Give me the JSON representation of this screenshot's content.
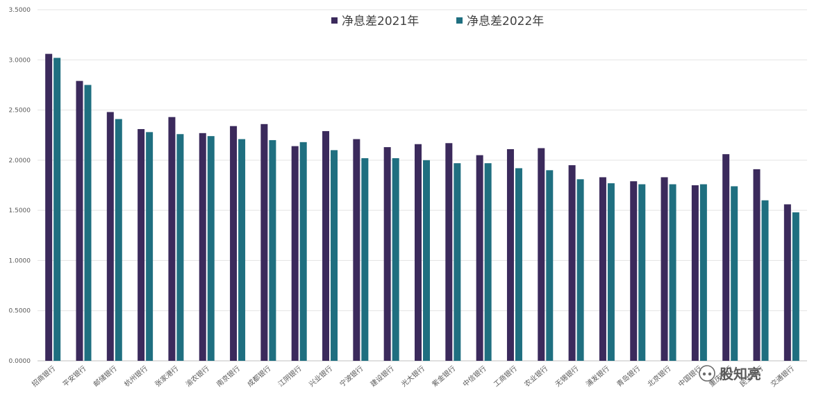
{
  "chart_data": {
    "type": "bar",
    "title": "",
    "xlabel": "",
    "ylabel": "",
    "ylim": [
      0,
      3.5
    ],
    "yticks": [
      0,
      0.5,
      1.0,
      1.5,
      2.0,
      2.5,
      3.0,
      3.5
    ],
    "ytick_labels": [
      "0.0000",
      "0.5000",
      "1.0000",
      "1.5000",
      "2.0000",
      "2.5000",
      "3.0000",
      "3.5000"
    ],
    "grid": true,
    "legend_position": "top-center",
    "categories": [
      "招商银行",
      "平安银行",
      "邮储银行",
      "杭州银行",
      "张家港行",
      "渝农银行",
      "南京银行",
      "成都银行",
      "江阴银行",
      "兴业银行",
      "宁波银行",
      "建设银行",
      "光大银行",
      "紫金银行",
      "中信银行",
      "工商银行",
      "农业银行",
      "无锡银行",
      "浦发银行",
      "青岛银行",
      "北京银行",
      "中国银行",
      "重庆银行",
      "民生银行",
      "交通银行"
    ],
    "series": [
      {
        "name": "净息差2021年",
        "color": "#3b2a5c",
        "values": [
          3.06,
          2.79,
          2.48,
          2.31,
          2.43,
          2.27,
          2.34,
          2.36,
          2.14,
          2.29,
          2.21,
          2.13,
          2.16,
          2.17,
          2.05,
          2.11,
          2.12,
          1.95,
          1.83,
          1.79,
          1.83,
          1.75,
          2.06,
          1.91,
          1.56
        ]
      },
      {
        "name": "净息差2022年",
        "color": "#1f6f80",
        "values": [
          3.02,
          2.75,
          2.41,
          2.28,
          2.26,
          2.24,
          2.21,
          2.2,
          2.18,
          2.1,
          2.02,
          2.02,
          2.0,
          1.97,
          1.97,
          1.92,
          1.9,
          1.81,
          1.77,
          1.76,
          1.76,
          1.76,
          1.74,
          1.6,
          1.48
        ]
      }
    ]
  },
  "watermark": {
    "text": "股知亮",
    "icon": "wechat-quote-icon"
  }
}
